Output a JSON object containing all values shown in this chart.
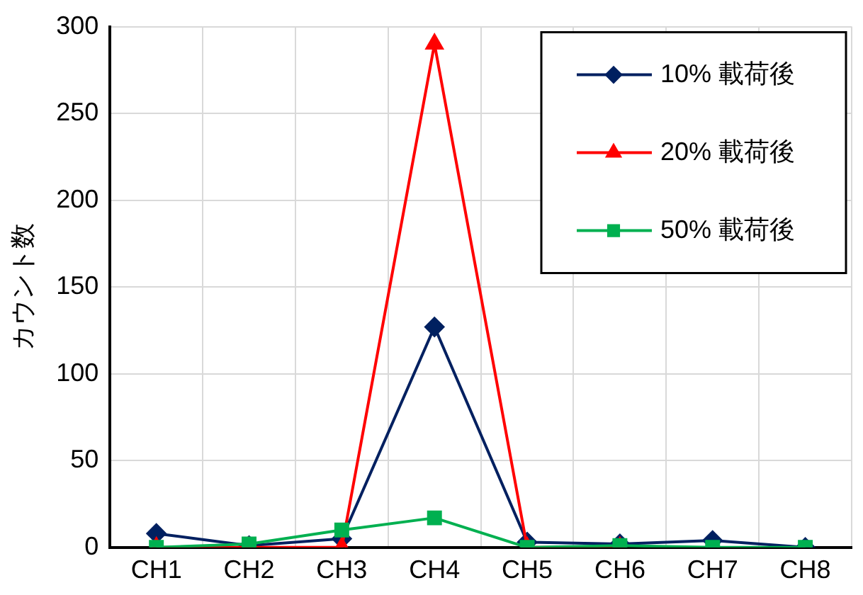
{
  "chart_data": {
    "type": "line",
    "ylabel": "カウント数",
    "categories": [
      "CH1",
      "CH2",
      "CH3",
      "CH4",
      "CH5",
      "CH6",
      "CH7",
      "CH8"
    ],
    "series": [
      {
        "name": "10% 載荷後",
        "color": "#002060",
        "marker": "diamond",
        "values": [
          8,
          1,
          5,
          127,
          3,
          2,
          4,
          0
        ]
      },
      {
        "name": "20% 載荷後",
        "color": "#ff0000",
        "marker": "triangle",
        "values": [
          0,
          0,
          0,
          290,
          0,
          0,
          null,
          null
        ]
      },
      {
        "name": "50% 載荷後",
        "color": "#00b050",
        "marker": "square",
        "values": [
          0,
          2,
          10,
          17,
          0,
          1,
          0,
          0
        ]
      }
    ],
    "ylim": [
      0,
      300
    ],
    "yticks": [
      0,
      50,
      100,
      150,
      200,
      250,
      300
    ],
    "grid": true,
    "legend": "top right",
    "line_style": "solid"
  }
}
